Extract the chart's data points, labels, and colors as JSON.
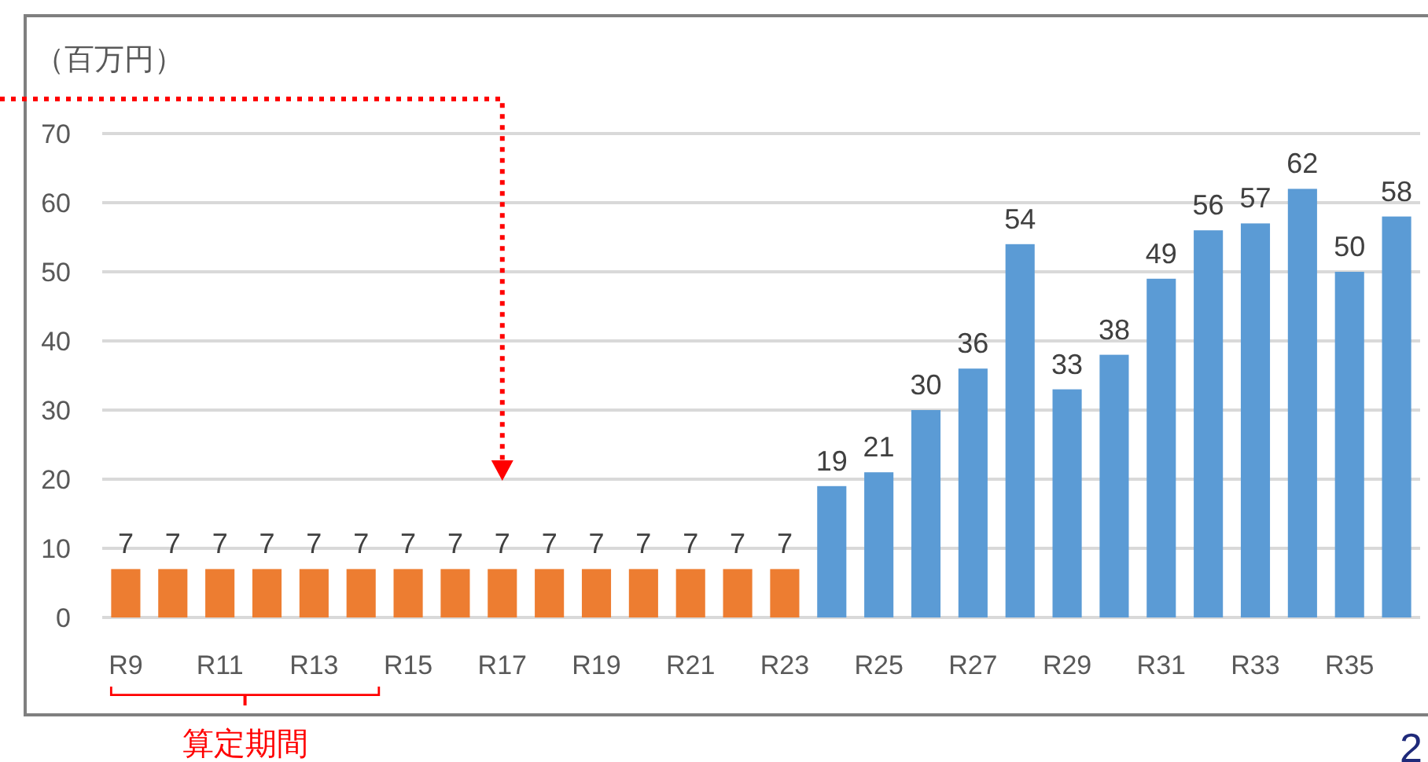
{
  "chart_data": {
    "type": "bar",
    "ylabel": "（百万円）",
    "categories": [
      "R9",
      null,
      "R11",
      null,
      "R13",
      null,
      "R15",
      null,
      "R17",
      null,
      "R19",
      null,
      "R21",
      null,
      "R23",
      null,
      "R25",
      null,
      "R27",
      null,
      "R29",
      null,
      "R31",
      null,
      "R33",
      null,
      "R35",
      null
    ],
    "values": [
      7,
      7,
      7,
      7,
      7,
      7,
      7,
      7,
      7,
      7,
      7,
      7,
      7,
      7,
      7,
      19,
      21,
      30,
      36,
      54,
      33,
      38,
      49,
      56,
      57,
      62,
      50,
      58
    ],
    "colors": [
      "#ed7d31",
      "#ed7d31",
      "#ed7d31",
      "#ed7d31",
      "#ed7d31",
      "#ed7d31",
      "#ed7d31",
      "#ed7d31",
      "#ed7d31",
      "#ed7d31",
      "#ed7d31",
      "#ed7d31",
      "#ed7d31",
      "#ed7d31",
      "#ed7d31",
      "#5b9bd5",
      "#5b9bd5",
      "#5b9bd5",
      "#5b9bd5",
      "#5b9bd5",
      "#5b9bd5",
      "#5b9bd5",
      "#5b9bd5",
      "#5b9bd5",
      "#5b9bd5",
      "#5b9bd5",
      "#5b9bd5",
      "#5b9bd5"
    ],
    "ylim": [
      0,
      70
    ],
    "yticks": [
      0,
      10,
      20,
      30,
      40,
      50,
      60,
      70
    ],
    "grid": "y",
    "data_labels": true,
    "annotations": [
      "算定期間",
      "2"
    ]
  }
}
